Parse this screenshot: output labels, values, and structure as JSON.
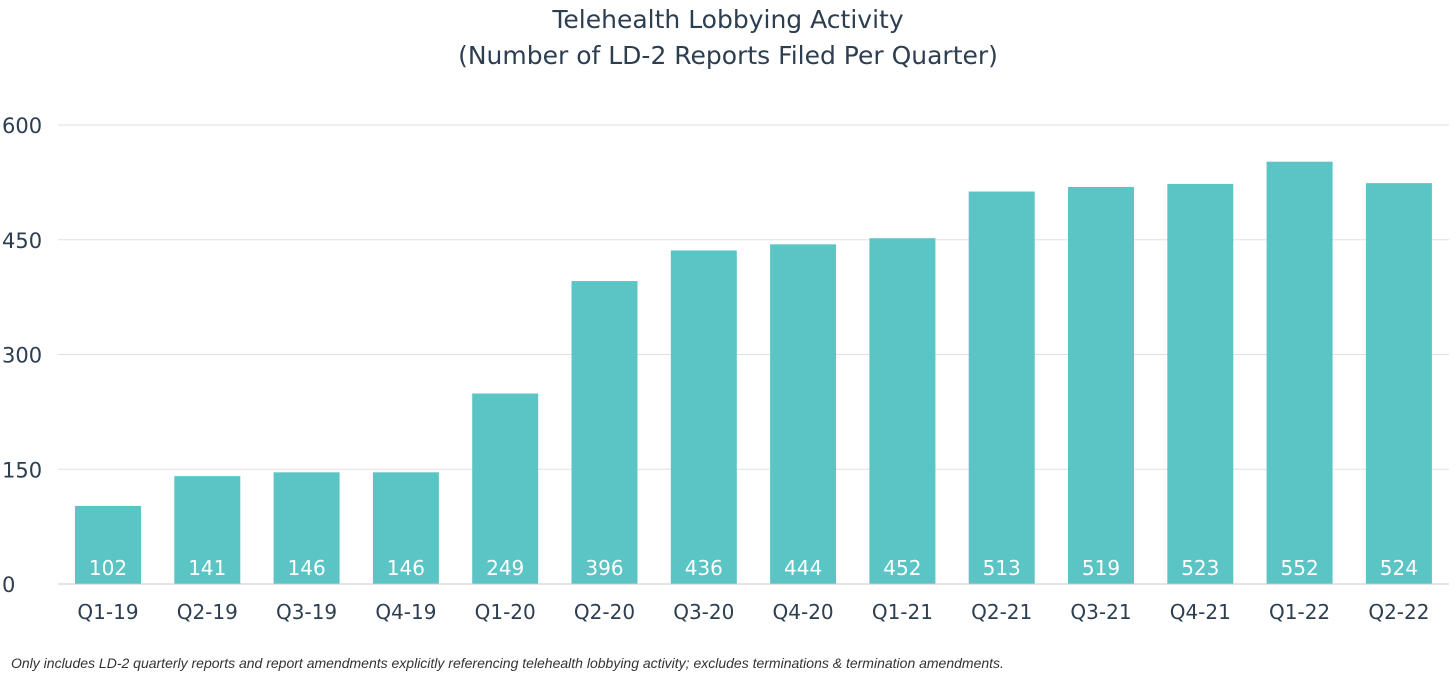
{
  "chart_data": {
    "type": "bar",
    "title": "Telehealth Lobbying Activity",
    "subtitle": "(Number of LD-2 Reports Filed Per Quarter)",
    "categories": [
      "Q1-19",
      "Q2-19",
      "Q3-19",
      "Q4-19",
      "Q1-20",
      "Q2-20",
      "Q3-20",
      "Q4-20",
      "Q1-21",
      "Q2-21",
      "Q3-21",
      "Q4-21",
      "Q1-22",
      "Q2-22"
    ],
    "values": [
      102,
      141,
      146,
      146,
      249,
      396,
      436,
      444,
      452,
      513,
      519,
      523,
      552,
      524
    ],
    "ylim": [
      0,
      600
    ],
    "yticks": [
      0,
      150,
      300,
      450,
      600
    ],
    "ytick_labels": [
      "0",
      "150",
      "300",
      "450",
      "600"
    ],
    "grid": true,
    "data_labels": true,
    "bar_color": "#5bc4c4",
    "grid_color": "#e0e0e0",
    "footnote": "Only includes LD-2 quarterly reports and report amendments explicitly referencing telehealth lobbying activity; excludes terminations & termination amendments."
  }
}
